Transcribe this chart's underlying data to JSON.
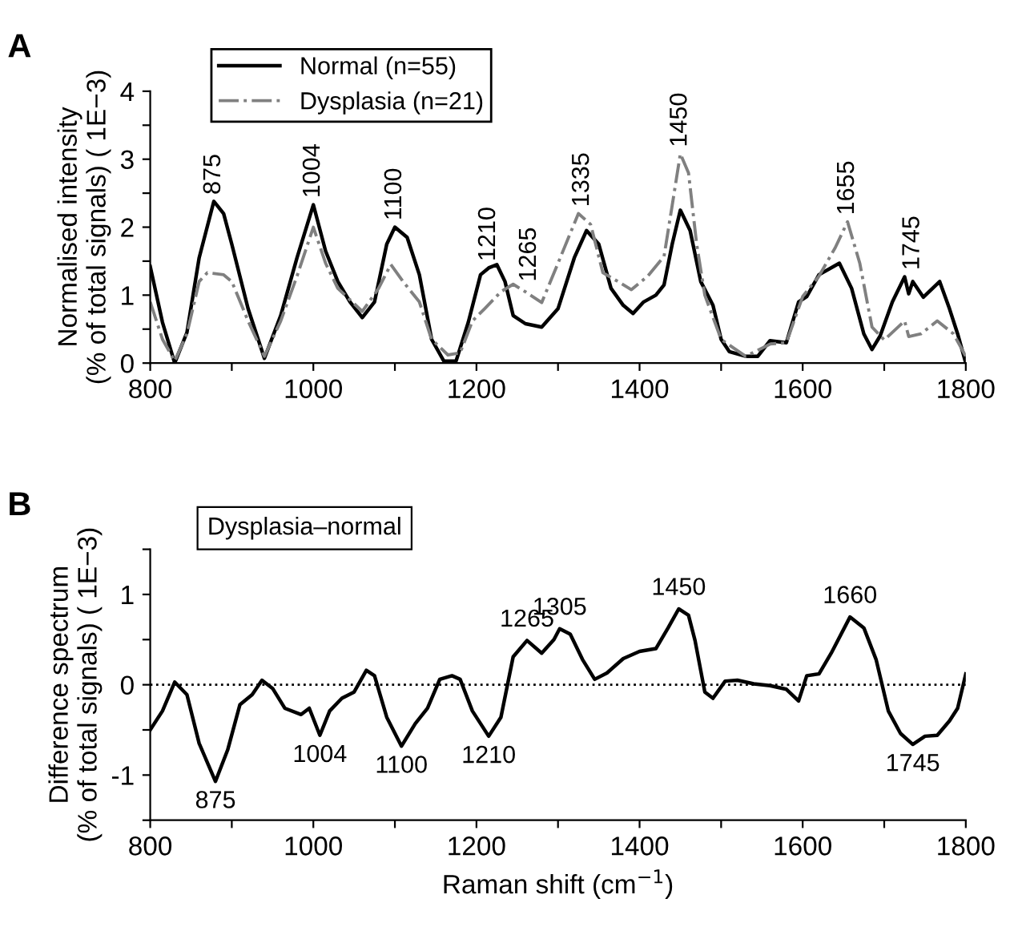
{
  "chart_data": [
    {
      "type": "line",
      "title": "A",
      "ylabel": "Normalised intensity\n(% of total signals) ( 1E−3)",
      "legend": "top left",
      "grid": false,
      "xlim": [
        800,
        1800
      ],
      "ylim": [
        0,
        4
      ],
      "xticks": [
        800,
        {
          "value": 900,
          "label": null
        },
        1000,
        {
          "value": 1100,
          "label": null
        },
        1200,
        {
          "value": 1300,
          "label": null
        },
        1400,
        {
          "value": 1500,
          "label": null
        },
        1600,
        {
          "value": 1700,
          "label": null
        },
        1800
      ],
      "yticks": [
        0,
        {
          "value": 0.5,
          "label": null
        },
        1,
        {
          "value": 1.5,
          "label": null
        },
        2,
        {
          "value": 2.5,
          "label": null
        },
        3,
        {
          "value": 3.5,
          "label": null
        },
        4
      ],
      "series": [
        {
          "name": "Normal (n=55)",
          "color": "#000000",
          "line_style": "solid",
          "x": [
            800,
            815,
            830,
            845,
            860,
            878,
            890,
            900,
            920,
            940,
            960,
            980,
            1000,
            1015,
            1030,
            1045,
            1060,
            1075,
            1090,
            1100,
            1115,
            1130,
            1145,
            1160,
            1175,
            1190,
            1205,
            1215,
            1225,
            1235,
            1245,
            1260,
            1280,
            1300,
            1320,
            1335,
            1350,
            1365,
            1380,
            1392,
            1405,
            1420,
            1430,
            1440,
            1450,
            1462,
            1475,
            1490,
            1500,
            1510,
            1530,
            1545,
            1560,
            1580,
            1595,
            1605,
            1620,
            1645,
            1660,
            1675,
            1685,
            1695,
            1710,
            1725,
            1730,
            1735,
            1748,
            1768,
            1780,
            1790,
            1800
          ],
          "values": [
            1.42,
            0.6,
            0,
            0.45,
            1.55,
            2.38,
            2.2,
            1.75,
            0.8,
            0.07,
            0.7,
            1.55,
            2.33,
            1.65,
            1.2,
            0.9,
            0.67,
            0.9,
            1.75,
            2.0,
            1.85,
            1.3,
            0.35,
            0.03,
            0.03,
            0.6,
            1.3,
            1.4,
            1.45,
            1.2,
            0.7,
            0.58,
            0.53,
            0.8,
            1.55,
            1.95,
            1.75,
            1.1,
            0.85,
            0.73,
            0.9,
            1.0,
            1.15,
            1.75,
            2.25,
            1.95,
            1.2,
            0.85,
            0.35,
            0.17,
            0.1,
            0.1,
            0.33,
            0.3,
            0.9,
            0.98,
            1.3,
            1.47,
            1.1,
            0.43,
            0.2,
            0.4,
            0.9,
            1.27,
            1.02,
            1.2,
            0.97,
            1.2,
            0.8,
            0.43,
            0
          ]
        },
        {
          "name": "Dysplasia (n=21)",
          "color": "#808080",
          "line_style": "dashdot",
          "x": [
            800,
            815,
            830,
            845,
            860,
            870,
            890,
            900,
            920,
            940,
            960,
            980,
            1000,
            1015,
            1030,
            1060,
            1080,
            1095,
            1110,
            1130,
            1145,
            1165,
            1180,
            1195,
            1210,
            1230,
            1245,
            1260,
            1280,
            1300,
            1325,
            1340,
            1355,
            1375,
            1390,
            1410,
            1430,
            1440,
            1450,
            1460,
            1470,
            1480,
            1500,
            1530,
            1560,
            1580,
            1600,
            1620,
            1640,
            1655,
            1670,
            1685,
            1700,
            1725,
            1730,
            1745,
            1765,
            1785,
            1800
          ],
          "values": [
            0.9,
            0.35,
            0.03,
            0.43,
            1.2,
            1.33,
            1.3,
            1.2,
            0.62,
            0.1,
            0.62,
            1.28,
            2.0,
            1.47,
            1.1,
            0.76,
            1.1,
            1.45,
            1.2,
            0.9,
            0.35,
            0.12,
            0.15,
            0.62,
            0.8,
            1.05,
            1.16,
            1.05,
            0.89,
            1.47,
            2.2,
            2.04,
            1.33,
            1.19,
            1.08,
            1.28,
            1.57,
            2.32,
            3.08,
            2.8,
            1.75,
            1.0,
            0.35,
            0.1,
            0.28,
            0.3,
            0.98,
            1.28,
            1.7,
            2.08,
            1.47,
            0.53,
            0.34,
            0.62,
            0.39,
            0.43,
            0.62,
            0.43,
            0.1
          ]
        }
      ],
      "annotations": [
        {
          "text": "875",
          "x": 878,
          "y": 2.38
        },
        {
          "text": "1004",
          "x": 1000,
          "y": 2.33
        },
        {
          "text": "1100",
          "x": 1100,
          "y": 2.0
        },
        {
          "text": "1210",
          "x": 1215,
          "y": 1.4
        },
        {
          "text": "1265",
          "x": 1265,
          "y": 1.1
        },
        {
          "text": "1335",
          "x": 1330,
          "y": 2.2
        },
        {
          "text": "1450",
          "x": 1450,
          "y": 3.08
        },
        {
          "text": "1655",
          "x": 1655,
          "y": 2.08
        },
        {
          "text": "1745",
          "x": 1735,
          "y": 1.27
        }
      ]
    },
    {
      "type": "line",
      "title": "B",
      "xlabel": "Raman shift (cm$^{−1}$)",
      "ylabel": "Difference spectrum\n(% of total signals) ( 1E−3)",
      "grid": false,
      "xlim": [
        800,
        1800
      ],
      "ylim": [
        -1.5,
        1.5
      ],
      "xticks": [
        800,
        {
          "value": 900,
          "label": null
        },
        1000,
        {
          "value": 1100,
          "label": null
        },
        1200,
        {
          "value": 1300,
          "label": null
        },
        1400,
        {
          "value": 1500,
          "label": null
        },
        1600,
        {
          "value": 1700,
          "label": null
        },
        1800
      ],
      "yticks": [
        {
          "value": -1.5,
          "label": null
        },
        {
          "value": -1,
          "label": "-1"
        },
        {
          "value": -0.5,
          "label": null
        },
        0,
        {
          "value": 0.5,
          "label": null
        },
        1,
        {
          "value": 1.5,
          "label": null
        }
      ],
      "ref_lines": [
        {
          "axis": "y",
          "value": 0,
          "line_style": "dotted",
          "color": "#000000"
        }
      ],
      "series": [
        {
          "color": "#000000",
          "line_style": "solid",
          "x": [
            800,
            815,
            830,
            845,
            860,
            880,
            895,
            910,
            925,
            937,
            950,
            965,
            985,
            995,
            1008,
            1020,
            1035,
            1050,
            1065,
            1075,
            1090,
            1108,
            1125,
            1140,
            1155,
            1170,
            1180,
            1195,
            1215,
            1230,
            1245,
            1262,
            1280,
            1295,
            1302,
            1315,
            1330,
            1345,
            1360,
            1380,
            1400,
            1420,
            1435,
            1448,
            1460,
            1468,
            1480,
            1490,
            1505,
            1520,
            1540,
            1560,
            1580,
            1595,
            1605,
            1620,
            1635,
            1658,
            1675,
            1690,
            1705,
            1720,
            1735,
            1750,
            1765,
            1780,
            1790,
            1800
          ],
          "values": [
            -0.5,
            -0.29,
            0.03,
            -0.11,
            -0.65,
            -1.07,
            -0.72,
            -0.22,
            -0.11,
            0.05,
            -0.04,
            -0.26,
            -0.33,
            -0.26,
            -0.56,
            -0.29,
            -0.15,
            -0.08,
            0.16,
            0.1,
            -0.36,
            -0.68,
            -0.43,
            -0.26,
            0.06,
            0.1,
            0.06,
            -0.29,
            -0.57,
            -0.36,
            0.31,
            0.49,
            0.35,
            0.5,
            0.62,
            0.56,
            0.28,
            0.06,
            0.13,
            0.29,
            0.37,
            0.4,
            0.63,
            0.84,
            0.77,
            0.49,
            -0.08,
            -0.15,
            0.04,
            0.05,
            0.01,
            -0.01,
            -0.05,
            -0.18,
            0.1,
            0.12,
            0.35,
            0.75,
            0.63,
            0.28,
            -0.29,
            -0.54,
            -0.66,
            -0.57,
            -0.56,
            -0.4,
            -0.26,
            0.12
          ]
        }
      ],
      "annotations": [
        "Dysplasia–normal",
        {
          "text": "875",
          "x": 880,
          "y": -1.07
        },
        {
          "text": "1004",
          "x": 1008,
          "y": -0.56
        },
        {
          "text": "1100",
          "x": 1108,
          "y": -0.68
        },
        {
          "text": "1210",
          "x": 1215,
          "y": -0.57
        },
        {
          "text": "1265",
          "x": 1262,
          "y": 0.49
        },
        {
          "text": "1305",
          "x": 1302,
          "y": 0.62
        },
        {
          "text": "1450",
          "x": 1448,
          "y": 0.84
        },
        {
          "text": "1660",
          "x": 1658,
          "y": 0.75
        },
        {
          "text": "1745",
          "x": 1735,
          "y": -0.66
        }
      ]
    }
  ]
}
